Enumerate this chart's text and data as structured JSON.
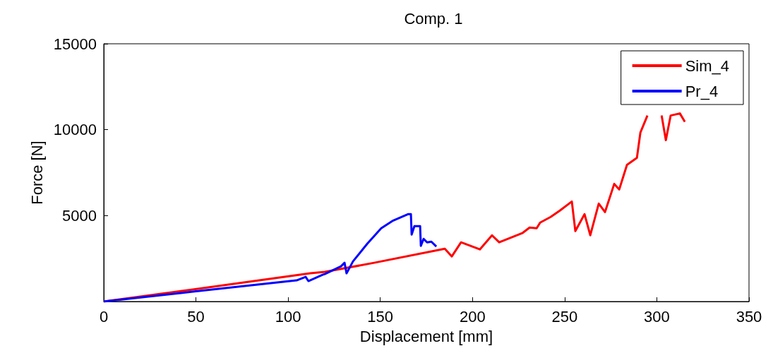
{
  "chart_data": {
    "type": "line",
    "title": "Comp. 1",
    "xlabel": "Displacement [mm]",
    "ylabel": "Force [N]",
    "xlim": [
      0,
      350
    ],
    "xticks": [
      0,
      50,
      100,
      150,
      200,
      250,
      300,
      350
    ],
    "ylim": [
      0,
      15000
    ],
    "yticks": [
      {
        "value": 0,
        "label": null
      },
      5000,
      10000,
      15000
    ],
    "grid": false,
    "legend": "top right",
    "marker": "none",
    "line_style": "solid",
    "series": [
      {
        "name": "Sim_4",
        "color": "#ff0000",
        "x": [
          0,
          48.3,
          112,
          119.9,
          146.7,
          185,
          188.8,
          193.8,
          204,
          210.6,
          214.5,
          227,
          231,
          234.8,
          236.7,
          242.4,
          247.4,
          253.9,
          255.8,
          260.8,
          263.9,
          268.5,
          271.9,
          276.9,
          279.6,
          283.8,
          289.2,
          291.1,
          294.9,
          298,
          302.6,
          304.9,
          307.5,
          312.5,
          315.2
        ],
        "values": [
          0,
          697,
          1640,
          1722,
          2255,
          3075,
          2624,
          3444,
          3034,
          3854,
          3444,
          3977,
          4305,
          4264,
          4592,
          4920,
          5289,
          5822,
          4100,
          5084,
          3854,
          5699,
          5207,
          6847,
          6519,
          7954,
          8364,
          9840,
          10824,
          null,
          10824,
          9389,
          10824,
          10947,
          10455
        ]
      },
      {
        "name": "Pr_4",
        "color": "#0000ff",
        "x": [
          0,
          48.3,
          104.6,
          109.5,
          111,
          118.7,
          119.9,
          128.7,
          130.6,
          131.7,
          135.2,
          142.9,
          150.5,
          157,
          165,
          166.6,
          167,
          168.5,
          171.6,
          172,
          173.5,
          175.4,
          177.7,
          180.4
        ],
        "values": [
          0,
          574,
          1230,
          1435,
          1190,
          1558,
          1599,
          2050,
          2255,
          1640,
          2337,
          3362,
          4264,
          4715,
          5084,
          5084,
          3895,
          4387,
          4387,
          3239,
          3649,
          3444,
          3485,
          3198
        ]
      }
    ]
  }
}
